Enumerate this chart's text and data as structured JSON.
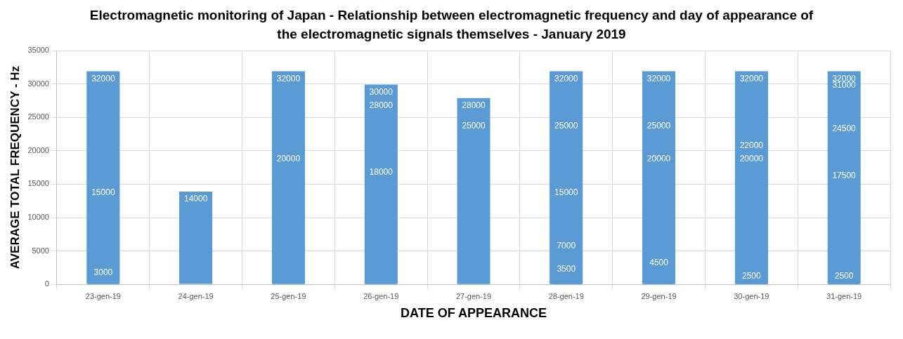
{
  "chart_data": {
    "type": "bar",
    "title": "Electromagnetic monitoring of Japan - Relationship between electromagnetic frequency and day of appearance of the electromagnetic signals themselves - January 2019",
    "xlabel": "DATE OF APPEARANCE",
    "ylabel": "AVERAGE TOTAL FREQUENCY - Hz",
    "categories": [
      "23-gen-19",
      "24-gen-19",
      "25-gen-19",
      "26-gen-19",
      "27-gen-19",
      "28-gen-19",
      "29-gen-19",
      "30-gen-19",
      "31-gen-19"
    ],
    "series": [
      {
        "color": "#5b9bd5",
        "values": [
          32000,
          14000,
          32000,
          30000,
          28000,
          32000,
          32000,
          32000,
          32000
        ]
      },
      {
        "color": "#5b9bd5",
        "values": [
          15000,
          null,
          20000,
          28000,
          25000,
          25000,
          25000,
          22000,
          31000
        ]
      },
      {
        "color": "#5b9bd5",
        "values": [
          3000,
          null,
          null,
          18000,
          null,
          15000,
          20000,
          20000,
          24500
        ]
      },
      {
        "color": "#5b9bd5",
        "values": [
          null,
          null,
          null,
          null,
          null,
          7000,
          4500,
          2500,
          17500
        ]
      },
      {
        "color": "#5b9bd5",
        "values": [
          null,
          null,
          null,
          null,
          null,
          3500,
          null,
          null,
          2500
        ]
      }
    ],
    "ylim": [
      0,
      35000
    ],
    "yticks": [
      0,
      5000,
      10000,
      15000,
      20000,
      25000,
      30000,
      35000
    ],
    "grid": true,
    "data_labels": true
  }
}
